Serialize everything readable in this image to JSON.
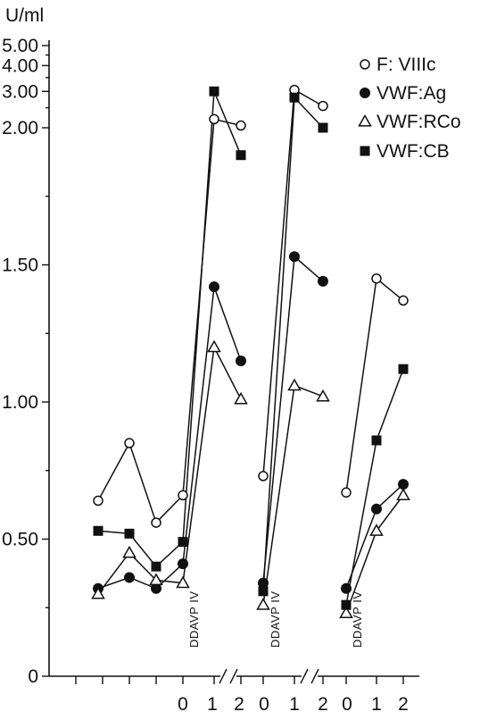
{
  "chart_data": {
    "type": "line",
    "unit_label": "U/ml",
    "y_ticks": [
      {
        "label": "0",
        "value": 0
      },
      {
        "label": "0.50",
        "value": 0.5
      },
      {
        "label": "1.00",
        "value": 1.0
      },
      {
        "label": "1.50",
        "value": 1.5
      },
      {
        "label": "2.00",
        "value": 2.0
      },
      {
        "label": "3.00",
        "value": 3.0
      },
      {
        "label": "4.00",
        "value": 4.0
      },
      {
        "label": "5.00",
        "value": 5.0
      }
    ],
    "x_tick_labels": [
      "0",
      "1",
      "2",
      "0",
      "1",
      "2",
      "0",
      "1",
      "2"
    ],
    "annotations": [
      "DDAVP IV",
      "DDAVP IV",
      "DDAVP IV"
    ],
    "legend": [
      {
        "label": "F: VIIIc",
        "marker": "open-circle"
      },
      {
        "label": "VWF:Ag",
        "marker": "filled-circle"
      },
      {
        "label": "VWF:RCo",
        "marker": "open-triangle"
      },
      {
        "label": "VWF:CB",
        "marker": "filled-square"
      }
    ],
    "series": [
      {
        "label": "F: VIIIc",
        "marker": "open-circle",
        "segments": [
          [
            [
              1,
              0.64
            ],
            [
              2,
              0.85
            ],
            [
              3,
              0.56
            ],
            [
              4,
              0.66
            ],
            [
              5,
              2.2
            ],
            [
              6,
              2.05
            ]
          ],
          [
            [
              7,
              0.73
            ],
            [
              8,
              3.05
            ],
            [
              9,
              2.55
            ]
          ],
          [
            [
              10,
              0.67
            ],
            [
              11,
              1.45
            ],
            [
              12,
              1.37
            ]
          ]
        ]
      },
      {
        "label": "VWF:Ag",
        "marker": "filled-circle",
        "segments": [
          [
            [
              1,
              0.32
            ],
            [
              2,
              0.36
            ],
            [
              3,
              0.32
            ],
            [
              4,
              0.41
            ],
            [
              5,
              1.42
            ],
            [
              6,
              1.15
            ]
          ],
          [
            [
              7,
              0.34
            ],
            [
              8,
              1.53
            ],
            [
              9,
              1.44
            ]
          ],
          [
            [
              10,
              0.32
            ],
            [
              11,
              0.61
            ],
            [
              12,
              0.7
            ]
          ]
        ]
      },
      {
        "label": "VWF:RCo",
        "marker": "open-triangle",
        "segments": [
          [
            [
              1,
              0.3
            ],
            [
              2,
              0.45
            ],
            [
              3,
              0.35
            ],
            [
              4,
              0.34
            ],
            [
              5,
              1.2
            ],
            [
              6,
              1.01
            ]
          ],
          [
            [
              7,
              0.26
            ],
            [
              8,
              1.06
            ],
            [
              9,
              1.02
            ]
          ],
          [
            [
              10,
              0.23
            ],
            [
              11,
              0.53
            ],
            [
              12,
              0.66
            ]
          ]
        ]
      },
      {
        "label": "VWF:CB",
        "marker": "filled-square",
        "segments": [
          [
            [
              1,
              0.53
            ],
            [
              2,
              0.52
            ],
            [
              3,
              0.4
            ],
            [
              4,
              0.49
            ],
            [
              5,
              3.0
            ],
            [
              6,
              1.9
            ]
          ],
          [
            [
              7,
              0.31
            ],
            [
              8,
              2.8
            ],
            [
              9,
              2.0
            ]
          ],
          [
            [
              10,
              0.26
            ],
            [
              11,
              0.86
            ],
            [
              12,
              1.12
            ]
          ]
        ]
      }
    ]
  }
}
